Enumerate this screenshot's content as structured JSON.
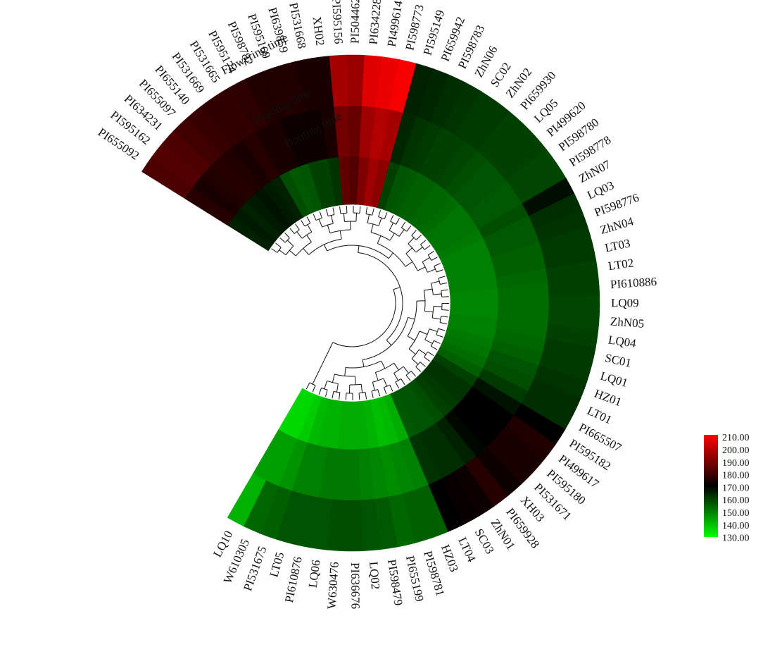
{
  "chart_data": {
    "type": "heatmap",
    "layout": "circular",
    "tracks": [
      "Booting time",
      "Heading time",
      "Flowering time"
    ],
    "legend": {
      "ticks": [
        "210.00",
        "200.00",
        "190.00",
        "180.00",
        "170.00",
        "160.00",
        "150.00",
        "140.00",
        "130.00"
      ],
      "min": 130,
      "max": 210,
      "colors": {
        "high": "#ff0000",
        "mid": "#000000",
        "low": "#00ff00"
      }
    },
    "accessions": [
      "PI655092",
      "PI595162",
      "PI634231",
      "PI655097",
      "PI655140",
      "PI531669",
      "PI531665",
      "PI595174",
      "PI598782",
      "PI595169",
      "PI639859",
      "PI531668",
      "XH02",
      "PI595156",
      "PI504462",
      "PI634228",
      "PI499614",
      "PI598773",
      "PI595149",
      "PI659942",
      "PI598783",
      "ZhN06",
      "SC02",
      "ZhN02",
      "PI659930",
      "LQ05",
      "PI499620",
      "PI598780",
      "PI598778",
      "ZhN07",
      "LQ03",
      "PI598776",
      "ZhN04",
      "LT03",
      "LT02",
      "PI610886",
      "LQ09",
      "ZhN05",
      "LQ04",
      "SC01",
      "LQ01",
      "HZ01",
      "LT01",
      "PI665507",
      "PI595182",
      "PI499617",
      "PI595180",
      "PI531671",
      "XH03",
      "PI659928",
      "ZhN01",
      "SC03",
      "LT04",
      "HZ03",
      "PI598781",
      "PI655199",
      "PI598479",
      "LQ02",
      "PI636676",
      "W630476",
      "LQ06",
      "PI610876",
      "LT05",
      "PI531675",
      "W610305",
      "LQ10"
    ],
    "values": {
      "booting": [
        165,
        166,
        165,
        166,
        167,
        166,
        165,
        158,
        156,
        157,
        160,
        160,
        162,
        185,
        183,
        190,
        195,
        192,
        160,
        157,
        156,
        155,
        155,
        154,
        154,
        153,
        152,
        152,
        152,
        151,
        150,
        150,
        150,
        150,
        150,
        149,
        149,
        149,
        150,
        150,
        151,
        152,
        153,
        155,
        160,
        162,
        162,
        161,
        160,
        158,
        157,
        157,
        156,
        143,
        141,
        140,
        142,
        143,
        143,
        143,
        142,
        142,
        141,
        138,
        136,
        136
      ],
      "heading": [
        176,
        174,
        175,
        176,
        175,
        174,
        176,
        174,
        174,
        172,
        172,
        172,
        174,
        188,
        186,
        195,
        198,
        196,
        164,
        162,
        161,
        160,
        160,
        159,
        158,
        157,
        157,
        156,
        156,
        158,
        156,
        156,
        155,
        155,
        154,
        153,
        153,
        153,
        153,
        154,
        155,
        157,
        158,
        161,
        167,
        170,
        170,
        170,
        169,
        165,
        163,
        163,
        162,
        150,
        149,
        148,
        149,
        150,
        151,
        151,
        151,
        150,
        150,
        147,
        145,
        145
      ],
      "flowering": [
        182,
        183,
        182,
        180,
        179,
        178,
        178,
        177,
        175,
        175,
        175,
        174,
        174,
        196,
        194,
        205,
        207,
        209,
        165,
        164,
        163,
        162,
        161,
        161,
        160,
        160,
        160,
        159,
        159,
        168,
        163,
        162,
        161,
        161,
        160,
        160,
        159,
        159,
        160,
        161,
        161,
        162,
        163,
        163,
        170,
        175,
        174,
        174,
        172,
        176,
        172,
        171,
        170,
        155,
        155,
        154,
        156,
        157,
        158,
        158,
        157,
        157,
        157,
        155,
        154,
        142
      ]
    }
  }
}
